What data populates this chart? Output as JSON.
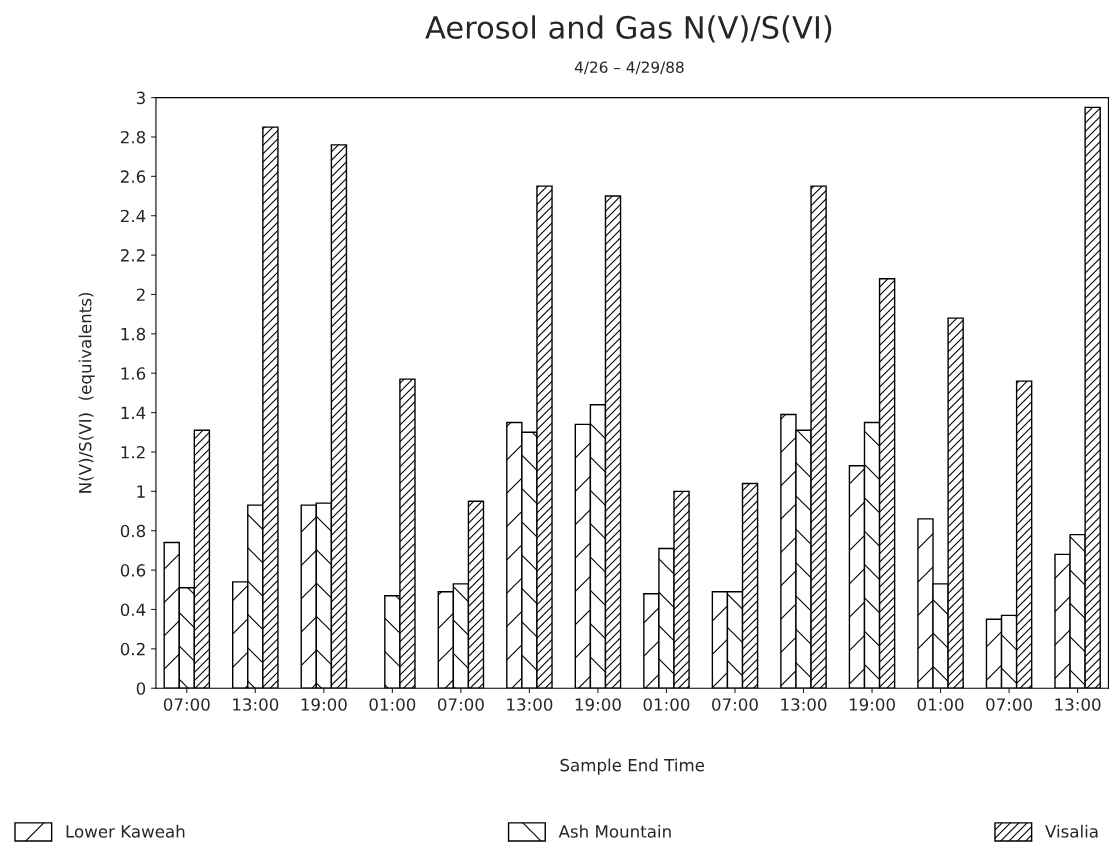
{
  "chart_data": {
    "type": "bar",
    "title": "Aerosol and Gas N(V)/S(VI)",
    "subtitle": "4/26 – 4/29/88",
    "xlabel": "Sample End Time",
    "ylabel": "N(V)/S(VI)  (equivalents)",
    "categories": [
      "07:00",
      "13:00",
      "19:00",
      "01:00",
      "07:00",
      "13:00",
      "19:00",
      "01:00",
      "07:00",
      "13:00",
      "19:00",
      "01:00",
      "07:00",
      "13:00"
    ],
    "series": [
      {
        "name": "Lower Kaweah",
        "color": "#000000",
        "values": [
          0.74,
          0.54,
          0.93,
          null,
          0.49,
          1.35,
          1.34,
          0.48,
          0.49,
          1.39,
          1.13,
          0.86,
          0.35,
          0.68
        ]
      },
      {
        "name": "Ash Mountain",
        "color": "#000000",
        "values": [
          0.51,
          0.93,
          0.94,
          0.47,
          0.53,
          1.3,
          1.44,
          0.71,
          0.49,
          1.31,
          1.35,
          0.53,
          0.37,
          0.78
        ]
      },
      {
        "name": "Visalia",
        "color": "#000000",
        "values": [
          1.31,
          2.85,
          2.76,
          1.57,
          0.95,
          2.55,
          2.5,
          1.0,
          1.04,
          2.55,
          2.08,
          1.88,
          1.56,
          2.95
        ]
      }
    ],
    "ylim": [
      0,
      3
    ],
    "yticks": [
      0,
      0.2,
      0.4,
      0.6,
      0.8,
      1,
      1.2,
      1.4,
      1.6,
      1.8,
      2,
      2.2,
      2.4,
      2.6,
      2.8,
      3
    ],
    "grid": false,
    "legend": "bottom"
  }
}
